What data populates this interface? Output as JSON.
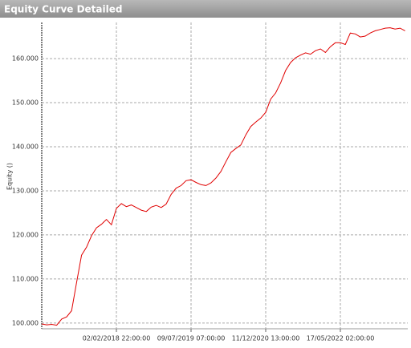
{
  "chart_data": {
    "type": "line",
    "title": "Equity Curve Detailed",
    "y_label": "Equity ()",
    "categories": [
      null,
      null,
      null,
      null,
      null,
      null,
      null,
      null,
      null,
      null,
      null,
      null,
      null,
      null,
      null,
      "02/02/2018 22:00:00",
      null,
      null,
      null,
      null,
      null,
      null,
      null,
      null,
      null,
      null,
      null,
      null,
      null,
      null,
      "09/07/2019 07:00:00",
      null,
      null,
      null,
      null,
      null,
      null,
      null,
      null,
      null,
      null,
      null,
      null,
      null,
      null,
      "11/12/2020 13:00:00",
      null,
      null,
      null,
      null,
      null,
      null,
      null,
      null,
      null,
      null,
      null,
      null,
      null,
      null,
      "17/05/2022 02:00:00",
      null,
      null,
      null,
      null,
      null,
      null,
      null,
      null,
      null,
      null,
      null,
      null,
      null
    ],
    "values": [
      99800,
      99600,
      99700,
      99500,
      100900,
      101400,
      102800,
      109200,
      115400,
      117200,
      119800,
      121600,
      122400,
      123500,
      122300,
      126000,
      127100,
      126400,
      126800,
      126200,
      125600,
      125300,
      126300,
      126700,
      126200,
      127000,
      129200,
      130600,
      131200,
      132300,
      132500,
      131900,
      131400,
      131200,
      131800,
      132900,
      134400,
      136600,
      138700,
      139600,
      140400,
      142700,
      144600,
      145600,
      146500,
      147800,
      150800,
      152200,
      154500,
      157300,
      159100,
      160200,
      160800,
      161300,
      161000,
      161800,
      162200,
      161400,
      162700,
      163600,
      163600,
      163200,
      165800,
      165600,
      164900,
      165100,
      165800,
      166300,
      166600,
      166900,
      167000,
      166700,
      166900,
      166300
    ],
    "color": "#e00000",
    "ylim": [
      98700,
      168200
    ],
    "yticks": [
      {
        "value": 100000,
        "label": "100.000"
      },
      {
        "value": 110000,
        "label": "110.000"
      },
      {
        "value": 120000,
        "label": "120.000"
      },
      {
        "value": 130000,
        "label": "130.000"
      },
      {
        "value": 140000,
        "label": "140.000"
      },
      {
        "value": 150000,
        "label": "150.000"
      },
      {
        "value": 160000,
        "label": "160.000"
      }
    ],
    "grid": true
  }
}
